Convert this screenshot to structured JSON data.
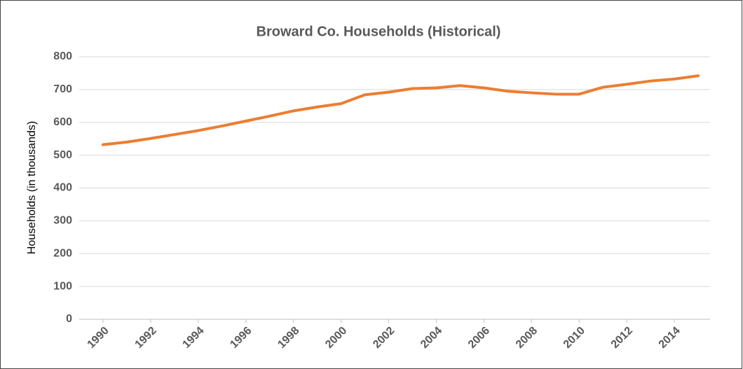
{
  "chart_data": {
    "type": "line",
    "title": "Broward Co. Households (Historical)",
    "y_label": "Households (in thousands)",
    "x": [
      1990,
      1991,
      1992,
      1993,
      1994,
      1995,
      1996,
      1997,
      1998,
      1999,
      2000,
      2001,
      2002,
      2003,
      2004,
      2005,
      2006,
      2007,
      2008,
      2009,
      2010,
      2011,
      2012,
      2013,
      2014,
      2015
    ],
    "series": [
      {
        "name": "Households",
        "color": "#ed7d31",
        "values": [
          532,
          540,
          551,
          563,
          575,
          589,
          604,
          619,
          635,
          647,
          657,
          684,
          692,
          703,
          705,
          712,
          705,
          695,
          690,
          686,
          686,
          707,
          716,
          726,
          732,
          742
        ]
      }
    ],
    "xlim": [
      1989,
      2015.5
    ],
    "xticks": [
      1990,
      1992,
      1994,
      1996,
      1998,
      2000,
      2002,
      2004,
      2006,
      2008,
      2010,
      2012,
      2014
    ],
    "ylim": [
      0,
      800
    ],
    "yticks": [
      0,
      100,
      200,
      300,
      400,
      500,
      600,
      700,
      800
    ],
    "grid": true
  }
}
